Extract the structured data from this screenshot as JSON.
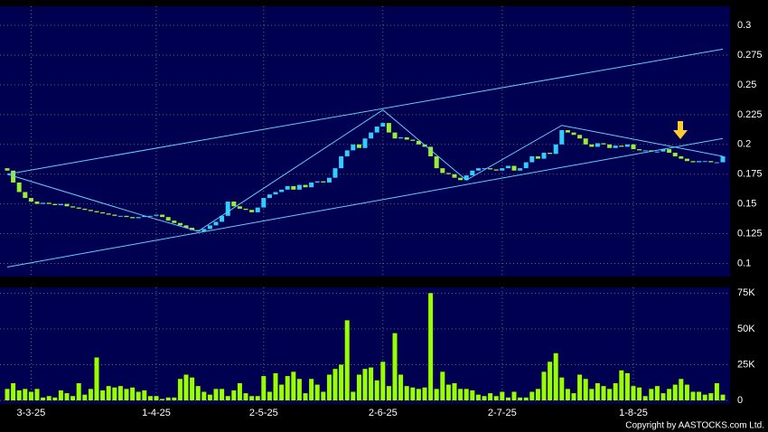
{
  "chart_data": [
    {
      "type": "candlestick",
      "categories": [
        null,
        null,
        null,
        null,
        "3-3-25",
        null,
        null,
        null,
        null,
        null,
        null,
        null,
        null,
        null,
        null,
        null,
        null,
        null,
        null,
        null,
        null,
        null,
        null,
        null,
        null,
        "1-4-25",
        null,
        null,
        null,
        null,
        null,
        null,
        null,
        null,
        null,
        null,
        null,
        null,
        null,
        null,
        null,
        null,
        null,
        "2-5-25",
        null,
        null,
        null,
        null,
        null,
        null,
        null,
        null,
        null,
        null,
        null,
        null,
        null,
        null,
        null,
        null,
        null,
        null,
        null,
        "2-6-25",
        null,
        null,
        null,
        null,
        null,
        null,
        null,
        null,
        null,
        null,
        null,
        null,
        null,
        null,
        null,
        null,
        null,
        null,
        null,
        "2-7-25",
        null,
        null,
        null,
        null,
        null,
        null,
        null,
        null,
        null,
        null,
        null,
        null,
        null,
        null,
        null,
        null,
        null,
        null,
        null,
        null,
        null,
        "1-8-25",
        null,
        null,
        null,
        null,
        null,
        null,
        null,
        null,
        null,
        null,
        null,
        null,
        null,
        null,
        null
      ],
      "open": [
        0.18,
        0.178,
        0.168,
        0.16,
        0.155,
        0.152,
        0.15,
        0.151,
        0.15,
        0.149,
        0.15,
        0.148,
        0.147,
        0.146,
        0.145,
        0.144,
        0.143,
        0.142,
        0.141,
        0.14,
        0.14,
        0.139,
        0.138,
        0.139,
        0.14,
        0.14,
        0.141,
        0.139,
        0.136,
        0.134,
        0.132,
        0.13,
        0.128,
        0.127,
        0.129,
        0.132,
        0.135,
        0.14,
        0.152,
        0.148,
        0.146,
        0.145,
        0.143,
        0.147,
        0.155,
        0.158,
        0.16,
        0.162,
        0.165,
        0.162,
        0.166,
        0.164,
        0.168,
        0.169,
        0.168,
        0.172,
        0.18,
        0.19,
        0.195,
        0.2,
        0.197,
        0.205,
        0.21,
        0.215,
        0.218,
        0.21,
        0.205,
        0.206,
        0.204,
        0.203,
        0.2,
        0.198,
        0.19,
        0.18,
        0.176,
        0.175,
        0.172,
        0.17,
        0.174,
        0.178,
        0.18,
        0.18,
        0.179,
        0.178,
        0.18,
        0.182,
        0.178,
        0.18,
        0.185,
        0.19,
        0.188,
        0.193,
        0.192,
        0.2,
        0.212,
        0.21,
        0.208,
        0.205,
        0.2,
        0.198,
        0.201,
        0.2,
        0.197,
        0.199,
        0.198,
        0.2,
        0.196,
        0.195,
        0.195,
        0.194,
        0.194,
        0.196,
        0.193,
        0.19,
        0.188,
        0.186,
        0.185,
        0.186,
        0.186,
        0.185,
        0.185
      ],
      "close": [
        0.178,
        0.168,
        0.16,
        0.155,
        0.152,
        0.15,
        0.151,
        0.15,
        0.149,
        0.15,
        0.148,
        0.147,
        0.146,
        0.145,
        0.144,
        0.143,
        0.142,
        0.141,
        0.14,
        0.14,
        0.139,
        0.138,
        0.139,
        0.14,
        0.14,
        0.141,
        0.139,
        0.136,
        0.134,
        0.132,
        0.13,
        0.128,
        0.127,
        0.129,
        0.132,
        0.135,
        0.14,
        0.152,
        0.148,
        0.146,
        0.145,
        0.143,
        0.147,
        0.155,
        0.158,
        0.16,
        0.162,
        0.165,
        0.162,
        0.166,
        0.164,
        0.168,
        0.169,
        0.168,
        0.172,
        0.18,
        0.19,
        0.195,
        0.2,
        0.197,
        0.205,
        0.21,
        0.215,
        0.218,
        0.21,
        0.205,
        0.206,
        0.204,
        0.203,
        0.2,
        0.198,
        0.19,
        0.18,
        0.176,
        0.175,
        0.172,
        0.17,
        0.174,
        0.178,
        0.18,
        0.18,
        0.179,
        0.178,
        0.18,
        0.182,
        0.178,
        0.18,
        0.185,
        0.19,
        0.188,
        0.193,
        0.192,
        0.2,
        0.212,
        0.21,
        0.208,
        0.205,
        0.2,
        0.198,
        0.201,
        0.2,
        0.197,
        0.199,
        0.198,
        0.2,
        0.196,
        0.195,
        0.195,
        0.194,
        0.194,
        0.196,
        0.193,
        0.19,
        0.188,
        0.186,
        0.185,
        0.186,
        0.186,
        0.185,
        0.185,
        0.19
      ],
      "up_color": "#33ccff",
      "down_color": "#99ee33",
      "lines": [
        {
          "color": "#66ccff",
          "points": [
            [
              0,
              0.175
            ],
            [
              120,
              0.28
            ]
          ]
        },
        {
          "color": "#66ccff",
          "points": [
            [
              0,
              0.097
            ],
            [
              120,
              0.205
            ]
          ]
        },
        {
          "color": "#66ccff",
          "points": [
            [
              0,
              0.175
            ],
            [
              23,
              0.14
            ],
            [
              32,
              0.127
            ],
            [
              63,
              0.229
            ],
            [
              77,
              0.17
            ],
            [
              93,
              0.216
            ],
            [
              120,
              0.19
            ]
          ]
        }
      ],
      "ylim": [
        0.089,
        0.316
      ],
      "yticks": [
        0.1,
        0.125,
        0.15,
        0.175,
        0.2,
        0.225,
        0.25,
        0.275,
        0.3
      ],
      "grid": true
    },
    {
      "type": "bar",
      "color": "#99ff00",
      "values": [
        8000,
        12000,
        7000,
        8000,
        6000,
        8000,
        2000,
        3000,
        2000,
        7000,
        5000,
        3000,
        12000,
        4000,
        8000,
        30000,
        7000,
        10000,
        9000,
        10000,
        8000,
        9000,
        6000,
        7000,
        3000,
        3000,
        1000,
        2000,
        2000,
        15000,
        18000,
        16000,
        10000,
        6000,
        4000,
        8000,
        8000,
        3000,
        7000,
        12000,
        5000,
        3000,
        3000,
        17000,
        6000,
        19000,
        11000,
        17000,
        20000,
        15000,
        5000,
        15000,
        11000,
        6000,
        18000,
        22000,
        25000,
        56000,
        6000,
        18000,
        22000,
        23000,
        14000,
        27000,
        10000,
        47000,
        18000,
        10000,
        9000,
        8000,
        9000,
        75000,
        8000,
        20000,
        11000,
        12000,
        8000,
        8000,
        7000,
        4000,
        3000,
        5000,
        3000,
        6000,
        2000,
        6000,
        2000,
        2000,
        6000,
        8000,
        20000,
        27000,
        33000,
        16000,
        8000,
        5000,
        18000,
        15000,
        8000,
        12000,
        10000,
        8000,
        12000,
        21000,
        19000,
        10000,
        9000,
        3000,
        8000,
        10000,
        5000,
        8000,
        11000,
        15000,
        11000,
        6000,
        6000,
        4000,
        5000,
        12000,
        4000
      ],
      "ylim": [
        0,
        79000
      ],
      "yticks": [
        0,
        {
          "value": 25000,
          "label": "25K"
        },
        {
          "value": 50000,
          "label": "50K"
        },
        {
          "value": 75000,
          "label": "75K"
        }
      ],
      "grid": true
    }
  ],
  "copyright": "Copyright by AASTOCKS.com Ltd."
}
